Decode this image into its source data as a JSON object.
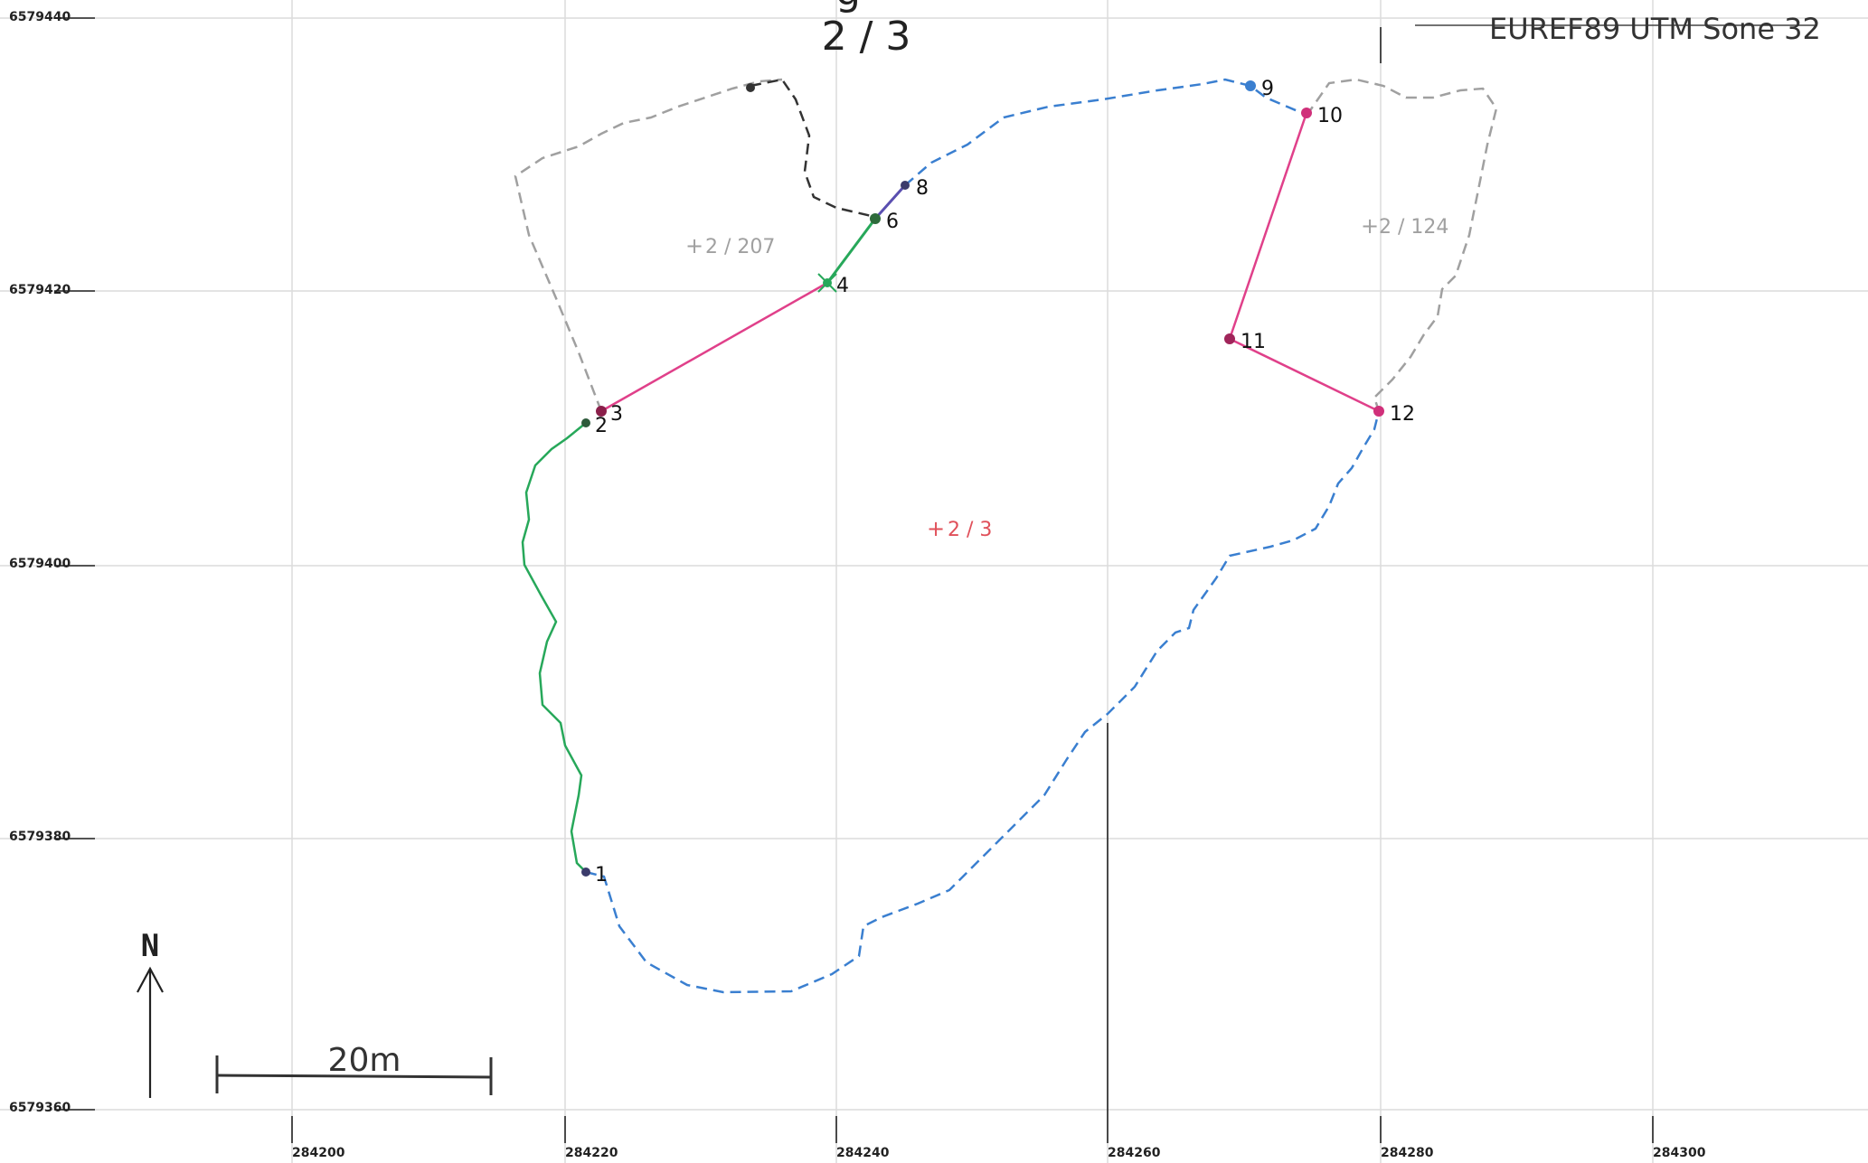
{
  "map": {
    "title_fragment": "g",
    "title": "2 / 3",
    "crs_label": "EUREF89 UTM Sone 32",
    "north_label": "N",
    "scale_label": "20m",
    "parcels": {
      "main": "2 / 3",
      "west": "2 / 207",
      "east": "2 / 124"
    },
    "point_labels": [
      "1",
      "2",
      "3",
      "4",
      "6",
      "8",
      "9",
      "10",
      "11",
      "12"
    ],
    "y_ticks": [
      "6579440",
      "6579420",
      "6579400",
      "6579380",
      "6579360"
    ],
    "x_ticks": [
      "284200",
      "284220",
      "284240",
      "284260",
      "284280",
      "284300"
    ],
    "colors": {
      "survey_boundary": "#3a7fd0",
      "measured_boundary": "#27a85a",
      "constructed_line": "#e0408a",
      "neighbor_boundary": "#a0a0a0",
      "main_parcel_label": "#e0505a",
      "grid": "#dcdcdc"
    }
  }
}
